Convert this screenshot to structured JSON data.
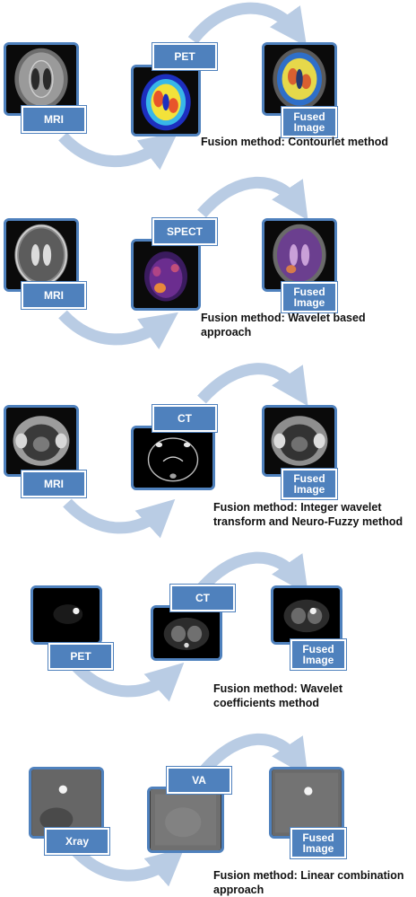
{
  "panels": [
    {
      "source_label": "MRI",
      "target_label": "PET",
      "fused_label": "Fused Image",
      "method": "Fusion method: Contourlet method"
    },
    {
      "source_label": "MRI",
      "target_label": "SPECT",
      "fused_label": "Fused Image",
      "method": "Fusion method: Wavelet based approach"
    },
    {
      "source_label": "MRI",
      "target_label": "CT",
      "fused_label": "Fused Image",
      "method": "Fusion method: Integer wavelet transform and Neuro-Fuzzy method"
    },
    {
      "source_label": "PET",
      "target_label": "CT",
      "fused_label": "Fused Image",
      "method": "Fusion method: Wavelet coefficients method"
    },
    {
      "source_label": "Xray",
      "target_label": "VA",
      "fused_label": "Fused Image",
      "method": "Fusion method: Linear combination approach"
    }
  ],
  "colors": {
    "accent": "#4f81bd",
    "arrow": "#b9cce4"
  }
}
